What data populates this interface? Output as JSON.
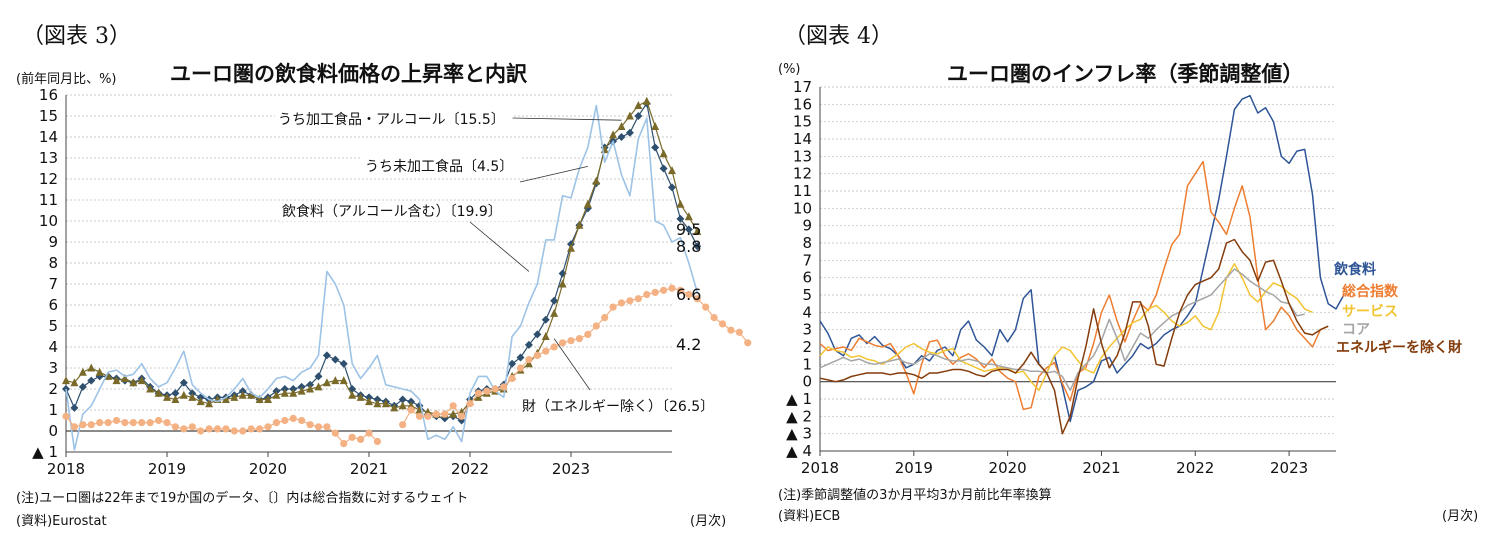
{
  "panel3": {
    "fig_label": "（図表 3）",
    "chart_data": {
      "type": "line",
      "title": "ユーロ圏の飲食料価格の上昇率と内訳",
      "ylabel": "(前年同月比、%)",
      "xlabel": "(月次)",
      "ylim": [
        -1,
        16
      ],
      "yticks": [
        16,
        15,
        14,
        13,
        12,
        11,
        10,
        9,
        8,
        7,
        6,
        5,
        4,
        3,
        2,
        1,
        0,
        -1
      ],
      "ytick_labels": [
        "16",
        "15",
        "14",
        "13",
        "12",
        "11",
        "10",
        "9",
        "8",
        "7",
        "6",
        "5",
        "4",
        "3",
        "2",
        "1",
        "0",
        "▲ 1"
      ],
      "xticks": [
        "2018",
        "2019",
        "2020",
        "2021",
        "2022",
        "2023"
      ],
      "start": "2018-01",
      "series": [
        {
          "name": "飲食料（アルコール含む）〔19.9〕",
          "color": "#2f4f6f",
          "marker": "diamond",
          "end_label": "8.8",
          "values": [
            2.0,
            1.1,
            2.1,
            2.4,
            2.6,
            2.6,
            2.5,
            2.4,
            2.3,
            2.5,
            2.1,
            1.8,
            1.7,
            1.8,
            2.3,
            1.8,
            1.6,
            1.5,
            1.6,
            1.6,
            1.7,
            1.9,
            1.7,
            1.5,
            1.6,
            1.9,
            2.0,
            2.0,
            2.1,
            2.2,
            2.6,
            3.6,
            3.4,
            3.2,
            2.0,
            1.7,
            1.6,
            1.5,
            1.4,
            1.2,
            1.5,
            1.4,
            1.2,
            0.8,
            0.7,
            0.6,
            0.7,
            0.5,
            1.5,
            1.9,
            2.0,
            2.0,
            2.2,
            3.2,
            3.5,
            4.1,
            4.6,
            5.3,
            6.2,
            7.5,
            8.9,
            9.8,
            10.6,
            11.8,
            13.5,
            13.8,
            14.0,
            14.2,
            15.0,
            15.6,
            13.5,
            12.5,
            11.6,
            10.1,
            9.6,
            8.8
          ]
        },
        {
          "name": "うち加工食品・アルコール〔15.5〕",
          "color": "#7a6a2a",
          "marker": "triangle",
          "end_label": "9.5",
          "values": [
            2.4,
            2.3,
            2.8,
            3.0,
            2.8,
            2.6,
            2.4,
            2.5,
            2.3,
            2.4,
            2.0,
            1.8,
            1.6,
            1.5,
            1.7,
            1.6,
            1.4,
            1.3,
            1.5,
            1.5,
            1.6,
            1.7,
            1.7,
            1.5,
            1.5,
            1.7,
            1.8,
            1.8,
            1.9,
            2.0,
            2.1,
            2.3,
            2.4,
            2.4,
            1.7,
            1.6,
            1.4,
            1.3,
            1.3,
            1.1,
            1.2,
            1.2,
            1.0,
            0.9,
            0.8,
            0.8,
            0.8,
            0.9,
            1.4,
            1.6,
            1.8,
            1.9,
            2.0,
            2.6,
            2.9,
            3.2,
            3.7,
            4.5,
            5.6,
            7.0,
            8.7,
            9.8,
            10.8,
            11.9,
            13.4,
            14.1,
            14.5,
            15.0,
            15.5,
            15.7,
            14.5,
            13.2,
            12.4,
            10.8,
            10.2,
            9.5
          ]
        },
        {
          "name": "うち未加工食品〔4.5〕",
          "color": "#9dc3e6",
          "marker": "none",
          "end_label": "6.6",
          "values": [
            2.0,
            -0.9,
            0.8,
            1.2,
            2.0,
            2.8,
            2.9,
            2.6,
            2.7,
            3.2,
            2.5,
            2.1,
            2.3,
            3.0,
            3.8,
            2.2,
            1.8,
            1.5,
            1.4,
            1.6,
            2.0,
            2.5,
            1.8,
            1.6,
            2.0,
            2.5,
            2.6,
            2.4,
            2.8,
            3.0,
            3.6,
            7.6,
            7.0,
            6.0,
            3.2,
            2.5,
            3.0,
            3.6,
            2.2,
            2.1,
            2.0,
            1.9,
            1.5,
            -0.4,
            -0.2,
            -0.4,
            0.2,
            -0.5,
            1.8,
            2.6,
            2.6,
            1.9,
            1.6,
            4.5,
            5.0,
            6.1,
            7.0,
            9.1,
            9.1,
            11.2,
            11.1,
            12.5,
            13.5,
            15.5,
            12.8,
            13.8,
            12.2,
            11.2,
            13.9,
            14.9,
            10.0,
            9.8,
            9.0,
            9.2,
            8.0,
            6.6
          ]
        },
        {
          "name": "財（エネルギー除く）〔26.5〕",
          "color": "#f4b183",
          "marker": "circle",
          "end_label": "4.2",
          "values": [
            0.7,
            0.2,
            0.3,
            0.3,
            0.4,
            0.4,
            0.5,
            0.4,
            0.4,
            0.4,
            0.4,
            0.5,
            0.4,
            0.2,
            0.1,
            0.2,
            0.0,
            0.1,
            0.1,
            0.1,
            0.0,
            0.0,
            0.1,
            0.1,
            0.2,
            0.4,
            0.5,
            0.6,
            0.5,
            0.3,
            0.2,
            0.2,
            -0.1,
            -0.6,
            -0.3,
            -0.4,
            -0.1,
            -0.5,
            null,
            null,
            0.3,
            1.0,
            0.7,
            0.7,
            0.8,
            0.8,
            1.2,
            0.7,
            1.3,
            1.8,
            1.9,
            2.0,
            2.1,
            2.5,
            3.0,
            3.4,
            3.6,
            3.8,
            4.0,
            4.2,
            4.3,
            4.4,
            4.6,
            5.0,
            5.4,
            5.9,
            6.1,
            6.2,
            6.3,
            6.5,
            6.6,
            6.7,
            6.8,
            6.7,
            6.5,
            6.3,
            5.9,
            5.4,
            5.1,
            4.8,
            4.7,
            4.2
          ]
        }
      ],
      "annotations": [
        "うち加工食品・アルコール〔15.5〕",
        "うち未加工食品〔4.5〕",
        "飲食料（アルコール含む）〔19.9〕",
        "財（エネルギー除く）〔26.5〕"
      ]
    },
    "note": "(注)ユーロ圏は22年まで19か国のデータ、〔〕内は総合指数に対するウェイト",
    "source": "(資料)Eurostat"
  },
  "panel4": {
    "fig_label": "（図表 4）",
    "chart_data": {
      "type": "line",
      "title": "ユーロ圏のインフレ率（季節調整値）",
      "ylabel": "(%)",
      "xlabel": "(月次)",
      "ylim": [
        -4,
        17
      ],
      "yticks": [
        17,
        16,
        15,
        14,
        13,
        12,
        11,
        10,
        9,
        8,
        7,
        6,
        5,
        4,
        3,
        2,
        1,
        0,
        -1,
        -2,
        -3,
        -4
      ],
      "ytick_labels": [
        "17",
        "16",
        "15",
        "14",
        "13",
        "12",
        "11",
        "10",
        "9",
        "8",
        "7",
        "6",
        "5",
        "4",
        "3",
        "2",
        "1",
        "0",
        "▲ 1",
        "▲ 2",
        "▲ 3",
        "▲ 4"
      ],
      "xticks": [
        "2018",
        "2019",
        "2020",
        "2021",
        "2022",
        "2023"
      ],
      "start": "2018-01",
      "series": [
        {
          "name": "飲食料",
          "color": "#2f5597",
          "values": [
            3.5,
            2.8,
            1.8,
            1.5,
            2.5,
            2.7,
            2.2,
            2.6,
            2.1,
            1.9,
            1.5,
            0.8,
            1.0,
            1.5,
            1.2,
            1.8,
            2.0,
            1.5,
            3.0,
            3.5,
            2.4,
            2.0,
            1.5,
            3.0,
            2.3,
            3.0,
            4.8,
            5.3,
            1.0,
            0.5,
            1.5,
            -0.3,
            -2.3,
            -0.5,
            -0.3,
            0.0,
            1.2,
            1.4,
            0.5,
            1.0,
            1.5,
            2.2,
            1.9,
            2.2,
            2.7,
            3.0,
            3.2,
            3.8,
            4.5,
            6.5,
            8.5,
            10.5,
            13.0,
            15.7,
            16.3,
            16.5,
            15.5,
            15.8,
            15.0,
            13.0,
            12.6,
            13.3,
            13.4,
            10.8,
            6.0,
            4.5,
            4.2,
            5.0
          ]
        },
        {
          "name": "総合指数",
          "color": "#ed7d31",
          "values": [
            2.2,
            1.8,
            1.9,
            2.0,
            1.8,
            2.5,
            2.3,
            2.1,
            2.0,
            2.2,
            1.5,
            0.5,
            -0.7,
            1.0,
            2.3,
            2.4,
            1.5,
            1.0,
            1.4,
            1.6,
            1.3,
            0.8,
            1.3,
            0.6,
            0.2,
            0.0,
            -1.6,
            -1.5,
            0.3,
            0.8,
            1.1,
            -0.1,
            -1.1,
            0.5,
            0.8,
            2.2,
            4.0,
            5.0,
            3.5,
            2.3,
            3.5,
            4.5,
            4.1,
            5.0,
            6.5,
            7.9,
            8.5,
            11.3,
            12.0,
            12.7,
            9.8,
            9.2,
            8.5,
            10.0,
            11.3,
            9.5,
            6.0,
            3.0,
            3.5,
            4.3,
            3.8,
            3.0,
            2.5,
            2.0,
            3.0,
            3.2
          ]
        },
        {
          "name": "サービス",
          "color": "#f2c431",
          "values": [
            1.5,
            2.0,
            1.8,
            1.7,
            1.4,
            1.5,
            1.3,
            1.2,
            1.0,
            1.3,
            1.6,
            2.0,
            2.2,
            1.9,
            1.7,
            1.6,
            1.8,
            1.9,
            1.2,
            1.0,
            0.8,
            0.6,
            0.7,
            0.8,
            0.8,
            0.5,
            0.6,
            0.0,
            -0.5,
            0.5,
            1.5,
            2.0,
            1.8,
            1.2,
            0.7,
            0.5,
            1.4,
            2.0,
            2.5,
            3.0,
            3.4,
            3.6,
            4.2,
            4.4,
            4.0,
            3.5,
            3.2,
            3.4,
            3.8,
            3.2,
            3.0,
            4.0,
            6.0,
            6.8,
            6.0,
            5.0,
            4.6,
            5.2,
            5.7,
            5.5,
            5.1,
            4.8,
            4.2,
            4.0
          ]
        },
        {
          "name": "コア",
          "color": "#a5a5a5",
          "values": [
            0.8,
            1.0,
            1.2,
            1.4,
            1.2,
            1.3,
            1.1,
            1.0,
            1.1,
            1.2,
            1.3,
            1.1,
            1.0,
            1.3,
            1.6,
            1.5,
            1.3,
            1.2,
            1.2,
            1.3,
            1.2,
            1.0,
            1.0,
            0.9,
            0.8,
            0.7,
            0.7,
            0.6,
            0.6,
            0.5,
            0.6,
            0.3,
            -0.5,
            0.5,
            1.0,
            1.5,
            2.4,
            3.6,
            2.5,
            1.2,
            2.0,
            2.8,
            2.5,
            3.0,
            3.4,
            3.8,
            4.0,
            4.4,
            4.6,
            4.8,
            5.0,
            5.5,
            6.0,
            6.5,
            6.2,
            5.8,
            5.5,
            5.2,
            5.0,
            4.6,
            4.5,
            3.8,
            3.9
          ]
        },
        {
          "name": "エネルギーを除く財",
          "color": "#843c0c",
          "values": [
            0.2,
            0.1,
            0.0,
            0.1,
            0.3,
            0.4,
            0.5,
            0.5,
            0.5,
            0.4,
            0.5,
            0.5,
            0.4,
            0.2,
            0.5,
            0.5,
            0.6,
            0.7,
            0.7,
            0.6,
            0.4,
            0.3,
            0.6,
            0.7,
            0.7,
            0.5,
            1.0,
            1.7,
            1.0,
            0.5,
            -0.5,
            -3.0,
            -2.0,
            0.2,
            2.0,
            4.2,
            2.2,
            0.8,
            1.5,
            2.8,
            4.6,
            4.6,
            3.2,
            1.0,
            0.9,
            2.5,
            4.0,
            5.0,
            5.6,
            5.8,
            6.0,
            6.5,
            8.0,
            8.2,
            7.5,
            7.0,
            5.8,
            6.9,
            7.0,
            5.8,
            4.5,
            3.5,
            2.8,
            2.7,
            3.0,
            3.2
          ]
        }
      ]
    },
    "note": "(注)季節調整値の3か月平均3か月前比年率換算",
    "source": "(資料)ECB"
  }
}
